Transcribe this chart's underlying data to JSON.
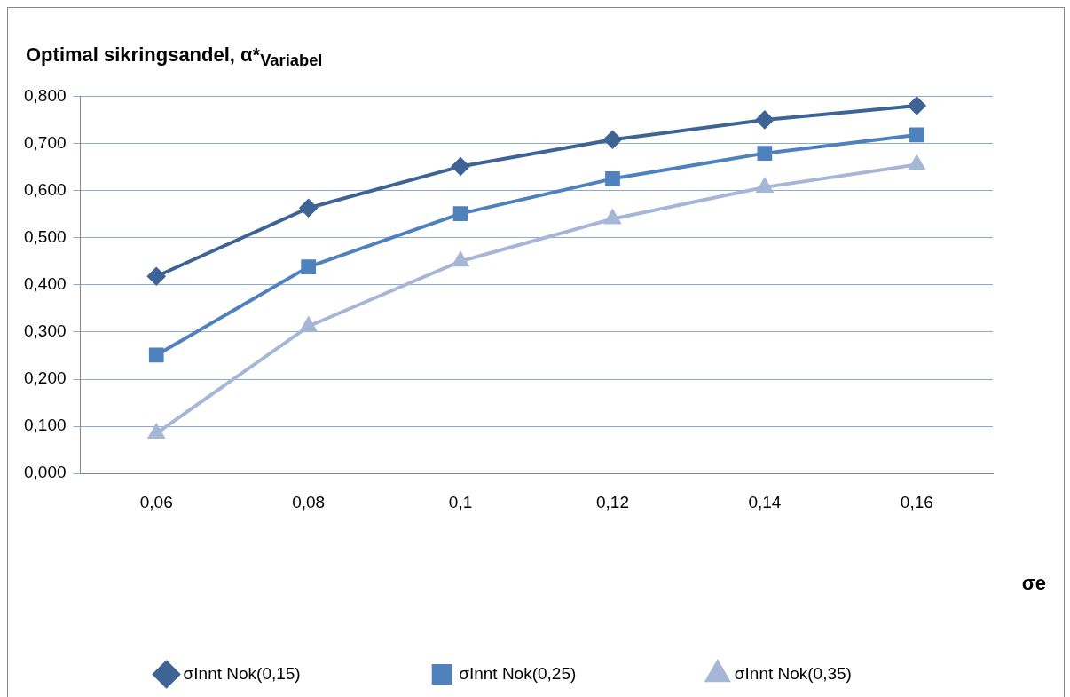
{
  "chart_data": {
    "type": "line",
    "title": "Optimal sikringsandel, α*$_{Variabel}$",
    "xlabel": "σe",
    "categories": [
      "0,06",
      "0,08",
      "0,1",
      "0,12",
      "0,14",
      "0,16"
    ],
    "series": [
      {
        "name": "σInnt Nok(0,15)",
        "color": "#3e6496",
        "marker": "diamond",
        "values": [
          0.418,
          0.563,
          0.651,
          0.708,
          0.75,
          0.78
        ]
      },
      {
        "name": "σInnt Nok(0,25)",
        "color": "#4f81bd",
        "marker": "square",
        "values": [
          0.251,
          0.438,
          0.551,
          0.625,
          0.679,
          0.718
        ]
      },
      {
        "name": "σInnt Nok(0,35)",
        "color": "#a5b6d6",
        "marker": "triangle",
        "values": [
          0.085,
          0.312,
          0.45,
          0.54,
          0.607,
          0.655
        ]
      }
    ],
    "ylim": [
      0,
      0.8
    ],
    "yticks": [
      {
        "value": 0,
        "label": "0,000"
      },
      {
        "value": 0.1,
        "label": "0,100"
      },
      {
        "value": 0.2,
        "label": "0,200"
      },
      {
        "value": 0.3,
        "label": "0,300"
      },
      {
        "value": 0.4,
        "label": "0,400"
      },
      {
        "value": 0.5,
        "label": "0,500"
      },
      {
        "value": 0.6,
        "label": "0,600"
      },
      {
        "value": 0.7,
        "label": "0,700"
      },
      {
        "value": 0.8,
        "label": "0,800"
      }
    ],
    "grid": "y",
    "legend": "bottom",
    "line_style": "solid"
  }
}
